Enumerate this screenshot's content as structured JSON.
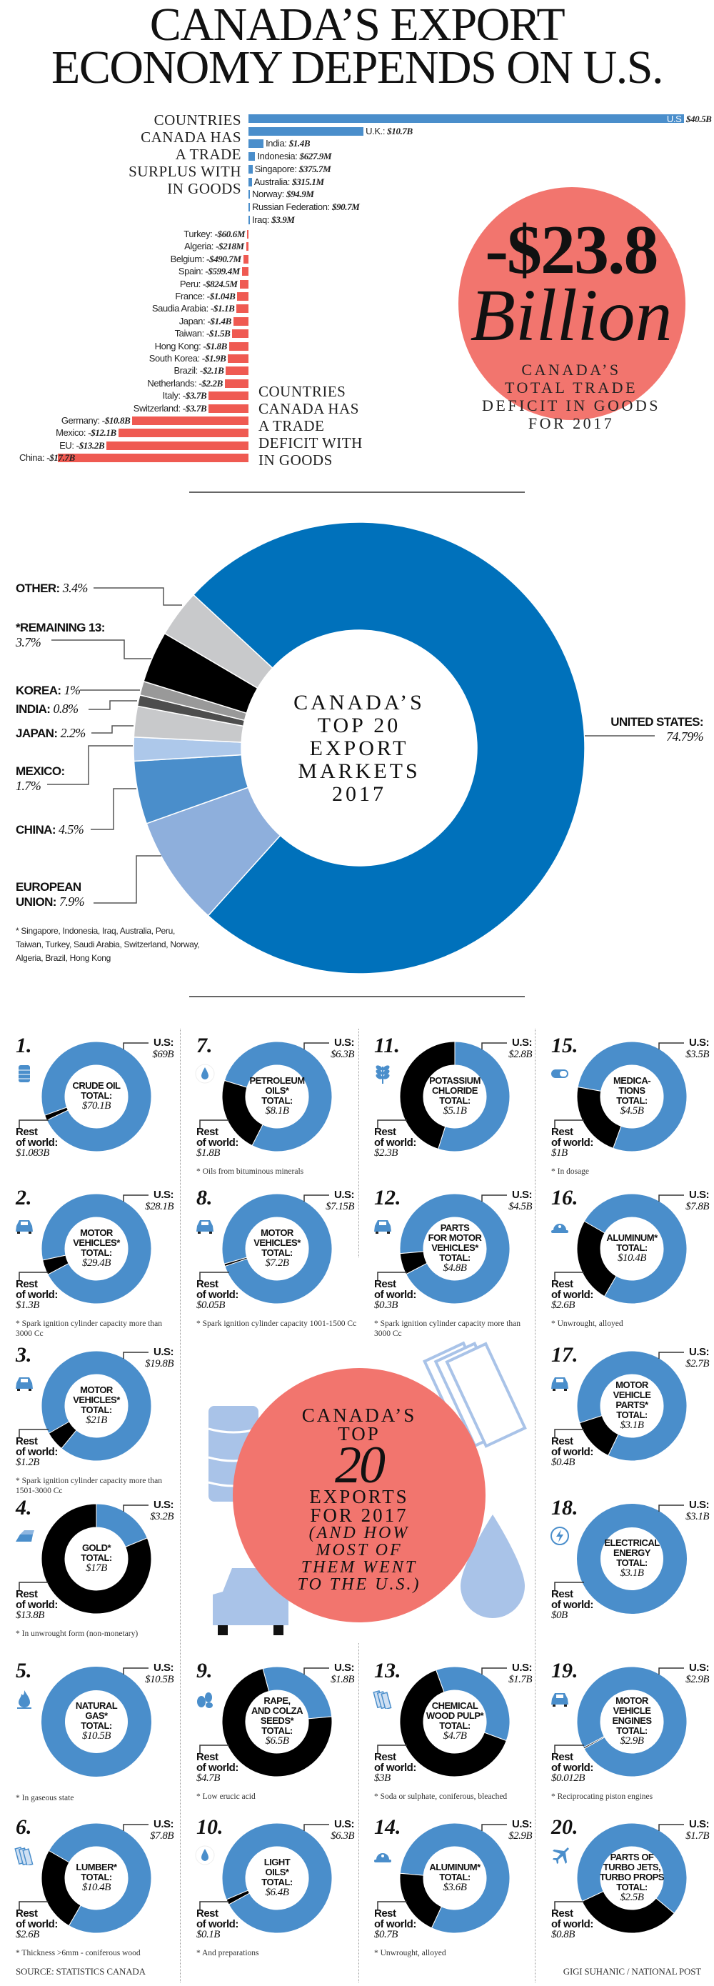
{
  "title": [
    "CANADA’S EXPORT",
    "ECONOMY DEPENDS ON U.S."
  ],
  "trade": {
    "surplus_heading": [
      "COUNTRIES",
      "CANADA HAS",
      "A TRADE",
      "SURPLUS WITH",
      "IN GOODS"
    ],
    "deficit_heading": [
      "COUNTRIES",
      "CANADA HAS",
      "A TRADE",
      "DEFICIT WITH",
      "IN GOODS"
    ],
    "surplus": [
      {
        "name": "U.S",
        "value_label": "$40.5B",
        "value": 40.5
      },
      {
        "name": "U.K.:",
        "value_label": "$10.7B",
        "value": 10.7
      },
      {
        "name": "India:",
        "value_label": "$1.4B",
        "value": 1.4
      },
      {
        "name": "Indonesia:",
        "value_label": "$627.9M",
        "value": 0.6279
      },
      {
        "name": "Singapore:",
        "value_label": "$375.7M",
        "value": 0.3757
      },
      {
        "name": "Australia:",
        "value_label": "$315.1M",
        "value": 0.3151
      },
      {
        "name": "Norway:",
        "value_label": "$94.9M",
        "value": 0.0949
      },
      {
        "name": "Russian Federation:",
        "value_label": "$90.7M",
        "value": 0.0907
      },
      {
        "name": "Iraq:",
        "value_label": "$3.9M",
        "value": 0.0039
      }
    ],
    "deficit": [
      {
        "name": "Turkey:",
        "value_label": "-$60.6M",
        "value": 0.0606
      },
      {
        "name": "Algeria:",
        "value_label": "-$218M",
        "value": 0.218
      },
      {
        "name": "Belgium:",
        "value_label": "-$490.7M",
        "value": 0.4907
      },
      {
        "name": "Spain:",
        "value_label": "-$599.4M",
        "value": 0.5994
      },
      {
        "name": "Peru:",
        "value_label": "-$824.5M",
        "value": 0.8245
      },
      {
        "name": "France:",
        "value_label": "-$1.04B",
        "value": 1.04
      },
      {
        "name": "Saudia Arabia:",
        "value_label": "-$1.1B",
        "value": 1.1
      },
      {
        "name": "Japan:",
        "value_label": "-$1.4B",
        "value": 1.4
      },
      {
        "name": "Taiwan:",
        "value_label": "-$1.5B",
        "value": 1.5
      },
      {
        "name": "Hong Kong:",
        "value_label": "-$1.8B",
        "value": 1.8
      },
      {
        "name": "South Korea:",
        "value_label": "-$1.9B",
        "value": 1.9
      },
      {
        "name": "Brazil:",
        "value_label": "-$2.1B",
        "value": 2.1
      },
      {
        "name": "Netherlands:",
        "value_label": "-$2.2B",
        "value": 2.2
      },
      {
        "name": "Italy:",
        "value_label": "-$3.7B",
        "value": 3.7
      },
      {
        "name": "Switzerland:",
        "value_label": "-$3.7B",
        "value": 3.7
      },
      {
        "name": "Germany:",
        "value_label": "-$10.8B",
        "value": 10.8
      },
      {
        "name": "Mexico:",
        "value_label": "-$12.1B",
        "value": 12.1
      },
      {
        "name": "EU:",
        "value_label": "-$13.2B",
        "value": 13.2
      },
      {
        "name": "China:",
        "value_label": "-$17.7B",
        "value": 17.7
      }
    ]
  },
  "total_deficit": {
    "amount": "-$23.8",
    "unit": "Billion",
    "caption": [
      "CANADA’S",
      "TOTAL TRADE",
      "DEFICIT IN GOODS",
      "FOR 2017"
    ]
  },
  "markets": {
    "center": [
      "CANADA’S",
      "TOP 20",
      "EXPORT",
      "MARKETS",
      "2017"
    ],
    "slices": [
      {
        "name": [
          "UNITED STATES:"
        ],
        "value_label": "74.79%",
        "value": 74.79
      },
      {
        "name": [
          "EUROPEAN",
          "UNION:"
        ],
        "value_label": "7.9%",
        "value": 7.9
      },
      {
        "name": [
          "CHINA:"
        ],
        "value_label": "4.5%",
        "value": 4.5
      },
      {
        "name": [
          "MEXICO:"
        ],
        "value_label": "1.7%",
        "value": 1.7
      },
      {
        "name": [
          "JAPAN:"
        ],
        "value_label": "2.2%",
        "value": 2.2
      },
      {
        "name": [
          "INDIA:"
        ],
        "value_label": "0.8%",
        "value": 0.8
      },
      {
        "name": [
          "KOREA:"
        ],
        "value_label": "1%",
        "value": 1.0
      },
      {
        "name": [
          "*REMAINING 13:"
        ],
        "value_label": "3.7%",
        "value": 3.7
      },
      {
        "name": [
          "OTHER:"
        ],
        "value_label": "3.4%",
        "value": 3.4
      }
    ],
    "footnote": [
      "* Singapore, Indonesia, Iraq, Australia, Peru,",
      "Taiwan, Turkey, Saudi Arabia, Switzerland, Norway,",
      "Algeria, Brazil, Hong Kong"
    ]
  },
  "exports": {
    "center": {
      "l1": "CANADA’S",
      "l2": "TOP",
      "l3": "20",
      "l4": "EXPORTS",
      "l5": "FOR 2017",
      "sub": [
        "(AND HOW",
        "MOST OF",
        "THEM WENT",
        "TO THE U.S.)"
      ]
    },
    "items": [
      {
        "rank": "1.",
        "icon": "oil-barrel-icon",
        "label": [
          "CRUDE OIL",
          "TOTAL:"
        ],
        "total": "$70.1B",
        "us_label": "U.S:",
        "us": "$69B",
        "us_value": 69,
        "row_label": [
          "Rest",
          "of world:"
        ],
        "row": "$1.083B",
        "row_value": 1.083,
        "footnote": ""
      },
      {
        "rank": "2.",
        "icon": "car-icon",
        "label": [
          "MOTOR",
          "VEHICLES*",
          "TOTAL:"
        ],
        "total": "$29.4B",
        "us_label": "U.S:",
        "us": "$28.1B",
        "us_value": 28.1,
        "row_label": [
          "Rest",
          "of world:"
        ],
        "row": "$1.3B",
        "row_value": 1.3,
        "footnote": "* Spark ignition cylinder capacity more than 3000 Cc"
      },
      {
        "rank": "3.",
        "icon": "car-icon",
        "label": [
          "MOTOR",
          "VEHICLES*",
          "TOTAL:"
        ],
        "total": "$21B",
        "us_label": "U.S:",
        "us": "$19.8B",
        "us_value": 19.8,
        "row_label": [
          "Rest",
          "of world:"
        ],
        "row": "$1.2B",
        "row_value": 1.2,
        "footnote": "* Spark ignition cylinder capacity more than 1501-3000 Cc"
      },
      {
        "rank": "4.",
        "icon": "gold-bar-icon",
        "label": [
          "GOLD*",
          "TOTAL:"
        ],
        "total": "$17B",
        "us_label": "U.S:",
        "us": "$3.2B",
        "us_value": 3.2,
        "row_label": [
          "Rest",
          "of world:"
        ],
        "row": "$13.8B",
        "row_value": 13.8,
        "footnote": "* In unwrought form (non-monetary)"
      },
      {
        "rank": "5.",
        "icon": "flame-icon",
        "label": [
          "NATURAL",
          "GAS*",
          "TOTAL:"
        ],
        "total": "$10.5B",
        "us_label": "U.S:",
        "us": "$10.5B",
        "us_value": 10.5,
        "row_label": [],
        "row": "",
        "row_value": 0,
        "footnote": "* In gaseous state"
      },
      {
        "rank": "6.",
        "icon": "lumber-icon",
        "label": [
          "LUMBER*",
          "TOTAL:"
        ],
        "total": "$10.4B",
        "us_label": "U.S:",
        "us": "$7.8B",
        "us_value": 7.8,
        "row_label": [
          "Rest",
          "of world:"
        ],
        "row": "$2.6B",
        "row_value": 2.6,
        "footnote": "* Thickness >6mm - coniferous wood"
      },
      {
        "rank": "7.",
        "icon": "oil-drop-icon",
        "label": [
          "PETROLEUM",
          "OILS*",
          "TOTAL:"
        ],
        "total": "$8.1B",
        "us_label": "U.S:",
        "us": "$6.3B",
        "us_value": 6.3,
        "row_label": [
          "Rest",
          "of world:"
        ],
        "row": "$1.8B",
        "row_value": 1.8,
        "footnote": "* Oils from bituminous minerals"
      },
      {
        "rank": "8.",
        "icon": "car-icon",
        "label": [
          "MOTOR",
          "VEHICLES*",
          "TOTAL:"
        ],
        "total": "$7.2B",
        "us_label": "U.S:",
        "us": "$7.15B",
        "us_value": 7.15,
        "row_label": [
          "Rest",
          "of world:"
        ],
        "row": "$0.05B",
        "row_value": 0.05,
        "footnote": "* Spark ignition cylinder capacity 1001-1500 Cc"
      },
      {
        "rank": "9.",
        "icon": "seeds-icon",
        "label": [
          "RAPE,",
          "AND COLZA",
          "SEEDS*",
          "TOTAL:"
        ],
        "total": "$6.5B",
        "us_label": "U.S:",
        "us": "$1.8B",
        "us_value": 1.8,
        "row_label": [
          "Rest",
          "of world:"
        ],
        "row": "$4.7B",
        "row_value": 4.7,
        "footnote": "* Low erucic acid"
      },
      {
        "rank": "10.",
        "icon": "oil-drop-icon",
        "label": [
          "LIGHT",
          "OILS*",
          "TOTAL:"
        ],
        "total": "$6.4B",
        "us_label": "U.S:",
        "us": "$6.3B",
        "us_value": 6.3,
        "row_label": [
          "Rest",
          "of world:"
        ],
        "row": "$0.1B",
        "row_value": 0.1,
        "footnote": "* And preparations"
      },
      {
        "rank": "11.",
        "icon": "wheat-icon",
        "label": [
          "POTASSIUM",
          "CHLORIDE",
          "TOTAL:"
        ],
        "total": "$5.1B",
        "us_label": "U.S:",
        "us": "$2.8B",
        "us_value": 2.8,
        "row_label": [
          "Rest",
          "of world:"
        ],
        "row": "$2.3B",
        "row_value": 2.3,
        "footnote": ""
      },
      {
        "rank": "12.",
        "icon": "car-icon",
        "label": [
          "PARTS",
          "FOR MOTOR",
          "VEHICLES*",
          "TOTAL:"
        ],
        "total": "$4.8B",
        "us_label": "U.S:",
        "us": "$4.5B",
        "us_value": 4.5,
        "row_label": [
          "Rest",
          "of world:"
        ],
        "row": "$0.3B",
        "row_value": 0.3,
        "footnote": "* Spark ignition cylinder capacity more than 3000 Cc"
      },
      {
        "rank": "13.",
        "icon": "lumber-icon",
        "label": [
          "CHEMICAL",
          "WOOD PULP*",
          "TOTAL:"
        ],
        "total": "$4.7B",
        "us_label": "U.S:",
        "us": "$1.7B",
        "us_value": 1.7,
        "row_label": [
          "Rest",
          "of world:"
        ],
        "row": "$3B",
        "row_value": 3.0,
        "footnote": "* Soda or sulphate, coniferous, bleached"
      },
      {
        "rank": "14.",
        "icon": "hard-hat-icon",
        "label": [
          "ALUMINUM*",
          "TOTAL:"
        ],
        "total": "$3.6B",
        "us_label": "U.S:",
        "us": "$2.9B",
        "us_value": 2.9,
        "row_label": [
          "Rest",
          "of world:"
        ],
        "row": "$0.7B",
        "row_value": 0.7,
        "footnote": "* Unwrought, alloyed"
      },
      {
        "rank": "15.",
        "icon": "pill-icon",
        "label": [
          "MEDICA-",
          "TIONS",
          "TOTAL:"
        ],
        "total": "$4.5B",
        "us_label": "U.S:",
        "us": "$3.5B",
        "us_value": 3.5,
        "row_label": [
          "Rest",
          "of world:"
        ],
        "row": "$1B",
        "row_value": 1.0,
        "footnote": "* In dosage"
      },
      {
        "rank": "16.",
        "icon": "hard-hat-icon",
        "label": [
          "ALUMINUM*",
          "TOTAL:"
        ],
        "total": "$10.4B",
        "us_label": "U.S:",
        "us": "$7.8B",
        "us_value": 7.8,
        "row_label": [
          "Rest",
          "of world:"
        ],
        "row": "$2.6B",
        "row_value": 2.6,
        "footnote": "* Unwrought, alloyed"
      },
      {
        "rank": "17.",
        "icon": "car-icon",
        "label": [
          "MOTOR",
          "VEHICLE",
          "PARTS*",
          "TOTAL:"
        ],
        "total": "$3.1B",
        "us_label": "U.S:",
        "us": "$2.7B",
        "us_value": 2.7,
        "row_label": [
          "Rest",
          "of world:"
        ],
        "row": "$0.4B",
        "row_value": 0.4,
        "footnote": ""
      },
      {
        "rank": "18.",
        "icon": "lightning-icon",
        "label": [
          "ELECTRICAL",
          "ENERGY",
          "TOTAL:"
        ],
        "total": "$3.1B",
        "us_label": "U.S:",
        "us": "$3.1B",
        "us_value": 3.1,
        "row_label": [
          "Rest",
          "of world:"
        ],
        "row": "$0B",
        "row_value": 0,
        "footnote": ""
      },
      {
        "rank": "19.",
        "icon": "car-icon",
        "label": [
          "MOTOR",
          "VEHICLE",
          "ENGINES",
          "TOTAL:"
        ],
        "total": "$2.9B",
        "us_label": "U.S:",
        "us": "$2.9B",
        "us_value": 2.9,
        "row_label": [
          "Rest",
          "of world:"
        ],
        "row": "$0.012B",
        "row_value": 0.012,
        "footnote": "* Reciprocating piston engines"
      },
      {
        "rank": "20.",
        "icon": "airplane-icon",
        "label": [
          "PARTS OF",
          "TURBO JETS,",
          "TURBO PROPS",
          "TOTAL:"
        ],
        "total": "$2.5B",
        "us_label": "U.S:",
        "us": "$1.7B",
        "us_value": 1.7,
        "row_label": [
          "Rest",
          "of world:"
        ],
        "row": "$0.8B",
        "row_value": 0.8,
        "footnote": ""
      }
    ]
  },
  "footer": {
    "source": "SOURCE: STATISTICS CANADA",
    "credit": "GIGI SUHANIC / NATIONAL POST"
  },
  "colors": {
    "us_blue": "#0071bb",
    "blue": "#4a8ecb",
    "light_blue": "#8eafdc",
    "pale_blue": "#adc8ea",
    "red_bar": "#ef5a52",
    "circle_red": "#f2756e",
    "black": "#000000",
    "grey": "#c8c9cb",
    "dark_grey": "#4d4d4d",
    "mid_grey": "#999999"
  },
  "chart_data": [
    {
      "type": "bar",
      "title": "Countries Canada has a trade surplus with in goods",
      "unit": "billion CAD",
      "categories": [
        "U.S",
        "U.K.",
        "India",
        "Indonesia",
        "Singapore",
        "Australia",
        "Norway",
        "Russian Federation",
        "Iraq"
      ],
      "values": [
        40.5,
        10.7,
        1.4,
        0.6279,
        0.3757,
        0.3151,
        0.0949,
        0.0907,
        0.0039
      ]
    },
    {
      "type": "bar",
      "title": "Countries Canada has a trade deficit with in goods",
      "unit": "billion CAD",
      "categories": [
        "Turkey",
        "Algeria",
        "Belgium",
        "Spain",
        "Peru",
        "France",
        "Saudia Arabia",
        "Japan",
        "Taiwan",
        "Hong Kong",
        "South Korea",
        "Brazil",
        "Netherlands",
        "Italy",
        "Switzerland",
        "Germany",
        "Mexico",
        "EU",
        "China"
      ],
      "values": [
        -0.0606,
        -0.218,
        -0.4907,
        -0.5994,
        -0.8245,
        -1.04,
        -1.1,
        -1.4,
        -1.5,
        -1.8,
        -1.9,
        -2.1,
        -2.2,
        -3.7,
        -3.7,
        -10.8,
        -12.1,
        -13.2,
        -17.7
      ]
    },
    {
      "type": "pie",
      "title": "Canada's top 20 export markets 2017",
      "unit": "%",
      "categories": [
        "United States",
        "European Union",
        "China",
        "Mexico",
        "Japan",
        "India",
        "Korea",
        "Remaining 13",
        "Other"
      ],
      "values": [
        74.79,
        7.9,
        4.5,
        1.7,
        2.2,
        0.8,
        1.0,
        3.7,
        3.4
      ]
    }
  ]
}
